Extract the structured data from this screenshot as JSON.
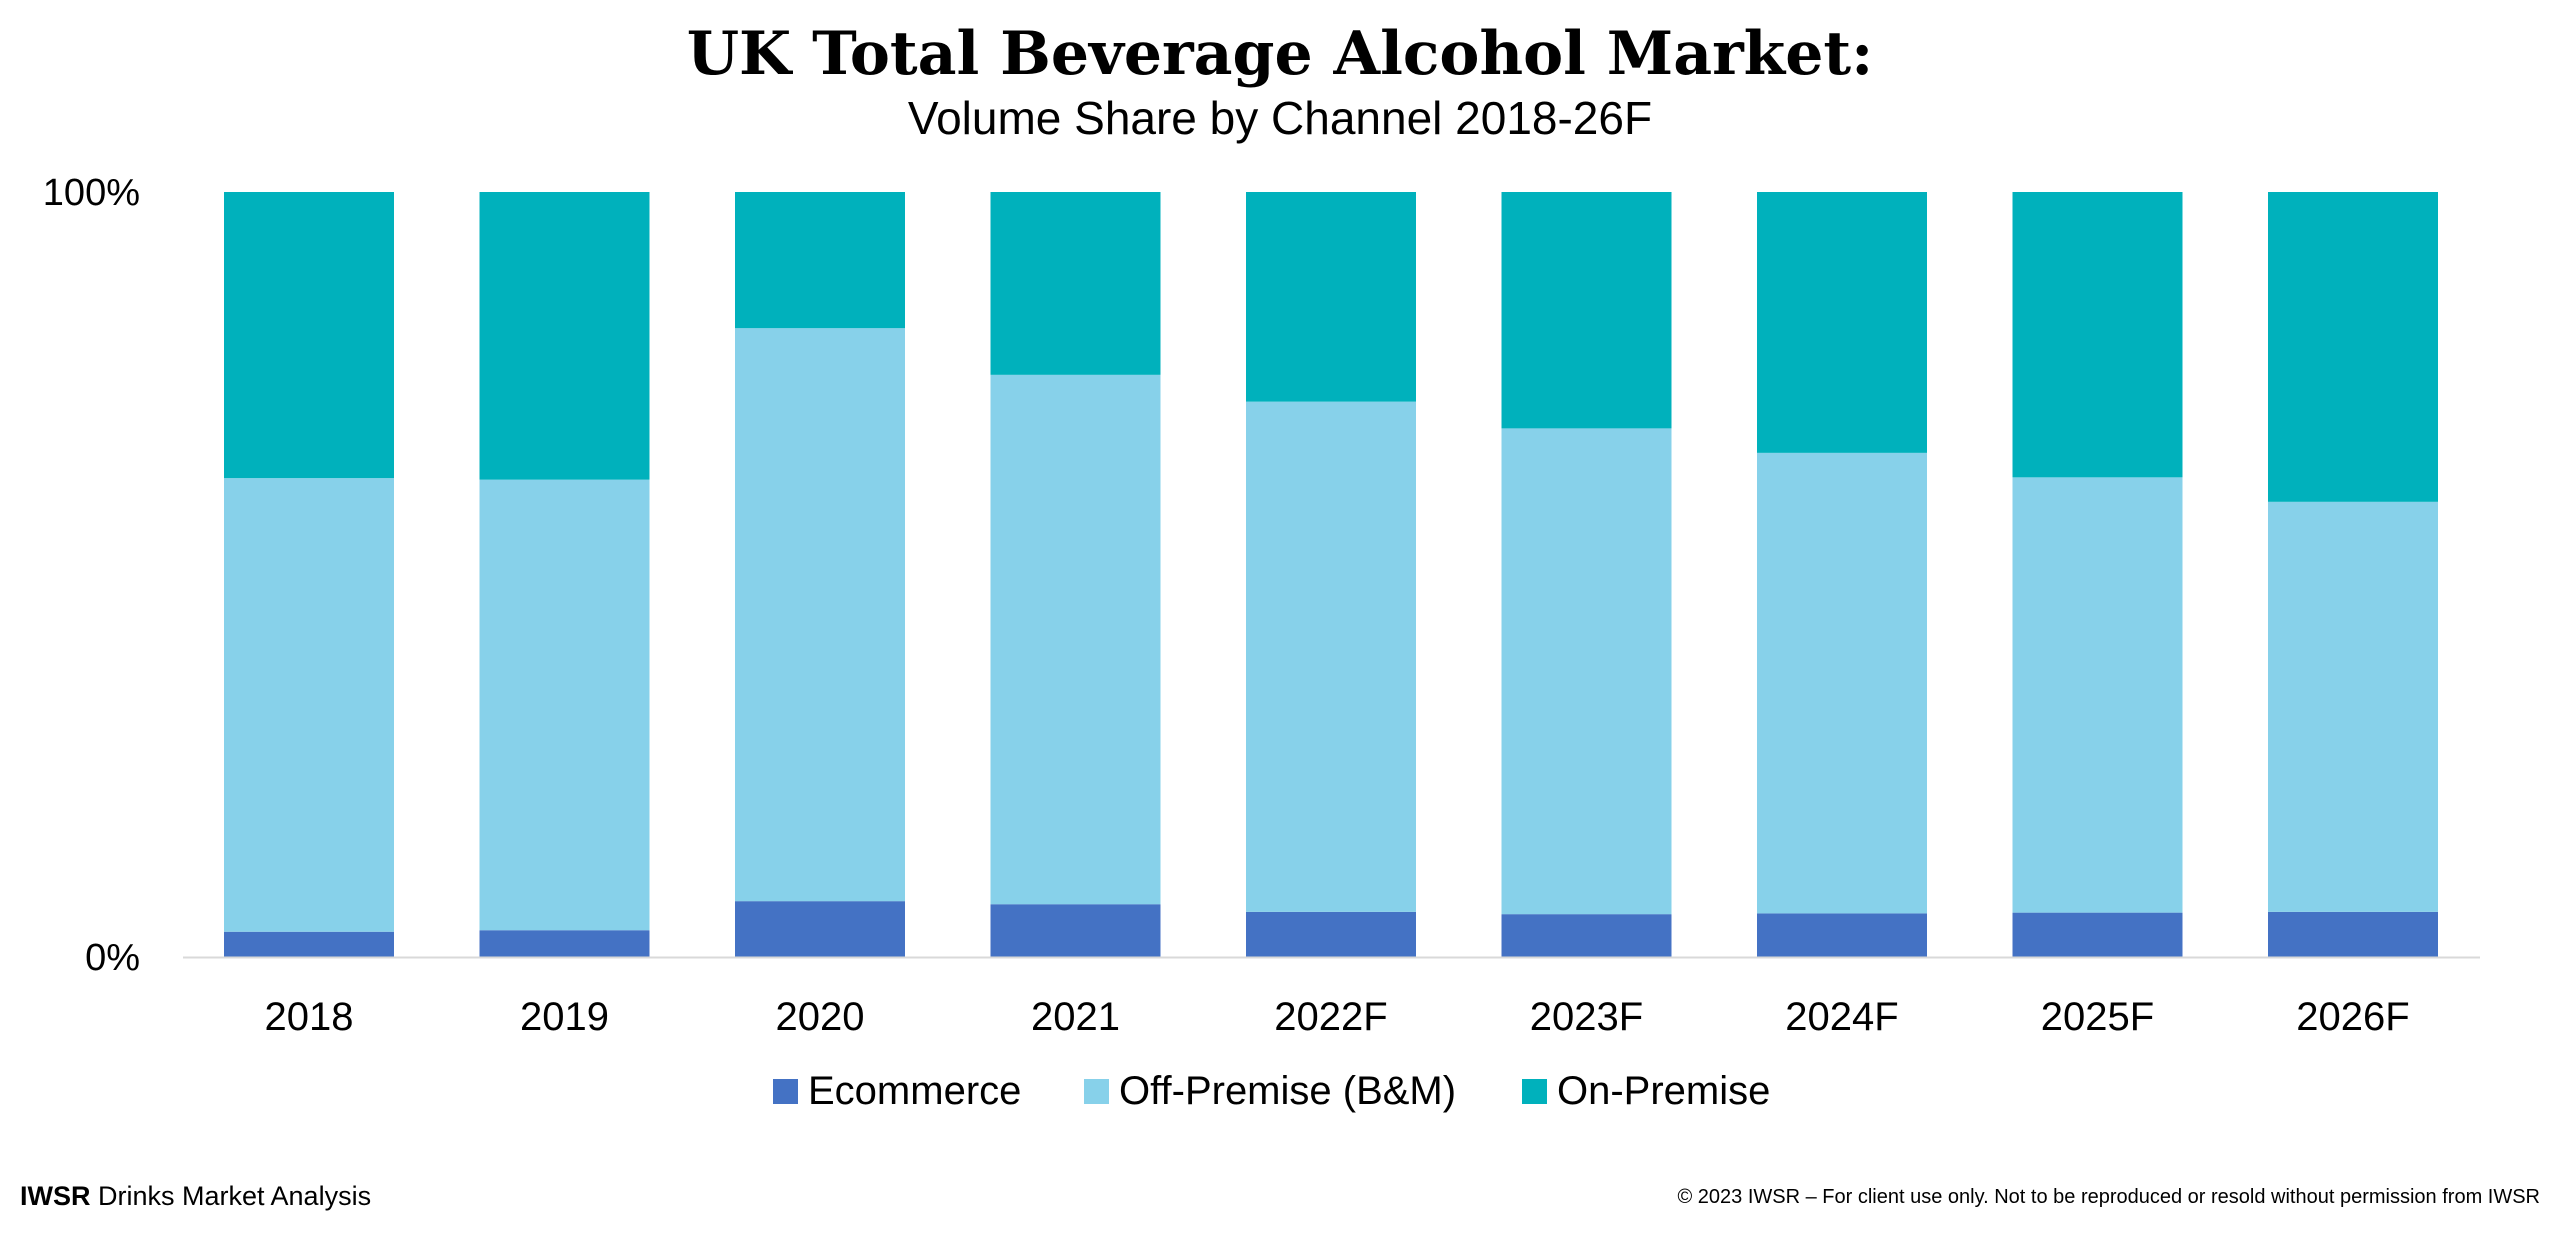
{
  "chart_data": {
    "type": "bar",
    "stacked": true,
    "title": "UK Total Beverage Alcohol Market:",
    "subtitle": "Volume Share by Channel 2018-26F",
    "categories": [
      "2018",
      "2019",
      "2020",
      "2021",
      "2022F",
      "2023F",
      "2024F",
      "2025F",
      "2026F"
    ],
    "series": [
      {
        "name": "Ecommerce",
        "color": "#4472C4",
        "values": [
          3.3,
          3.5,
          7.3,
          6.9,
          5.9,
          5.6,
          5.7,
          5.8,
          5.9
        ]
      },
      {
        "name": "Off-Premise (B&M)",
        "color": "#87D1EA",
        "values": [
          59.3,
          58.9,
          74.9,
          69.2,
          66.7,
          63.5,
          60.2,
          56.9,
          53.6
        ]
      },
      {
        "name": "On-Premise",
        "color": "#00B1BC",
        "values": [
          37.4,
          37.6,
          17.8,
          23.9,
          27.4,
          30.9,
          34.1,
          37.3,
          40.5
        ]
      }
    ],
    "ylim": [
      0,
      100
    ],
    "y_ticks": [
      "0%",
      "100%"
    ],
    "grid": false,
    "legend_position": "bottom-center",
    "xlabel": "",
    "ylabel": ""
  },
  "footer": {
    "brand": "IWSR",
    "brand_suffix": " Drinks Market Analysis",
    "copyright": "© 2023 IWSR – For client use only. Not to be reproduced or resold without permission from IWSR"
  }
}
